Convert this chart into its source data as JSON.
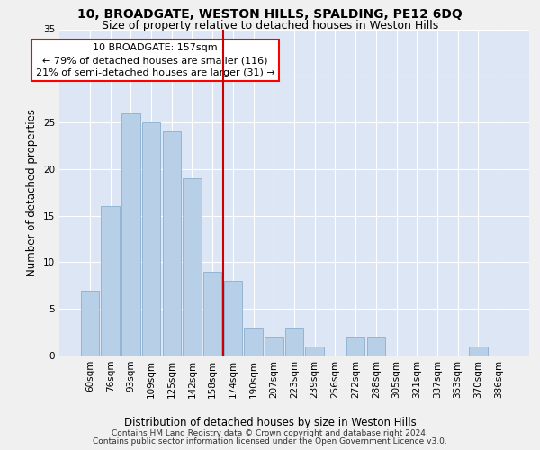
{
  "title1": "10, BROADGATE, WESTON HILLS, SPALDING, PE12 6DQ",
  "title2": "Size of property relative to detached houses in Weston Hills",
  "xlabel": "Distribution of detached houses by size in Weston Hills",
  "ylabel": "Number of detached properties",
  "footnote1": "Contains HM Land Registry data © Crown copyright and database right 2024.",
  "footnote2": "Contains public sector information licensed under the Open Government Licence v3.0.",
  "annotation_line1": "10 BROADGATE: 157sqm",
  "annotation_line2": "← 79% of detached houses are smaller (116)",
  "annotation_line3": "21% of semi-detached houses are larger (31) →",
  "bar_labels": [
    "60sqm",
    "76sqm",
    "93sqm",
    "109sqm",
    "125sqm",
    "142sqm",
    "158sqm",
    "174sqm",
    "190sqm",
    "207sqm",
    "223sqm",
    "239sqm",
    "256sqm",
    "272sqm",
    "288sqm",
    "305sqm",
    "321sqm",
    "337sqm",
    "353sqm",
    "370sqm",
    "386sqm"
  ],
  "bar_values": [
    7,
    16,
    26,
    25,
    24,
    19,
    9,
    8,
    3,
    2,
    3,
    1,
    0,
    2,
    2,
    0,
    0,
    0,
    0,
    1,
    0
  ],
  "bar_color": "#b8cfe8",
  "bar_edge_color": "#8ab0d0",
  "vline_color": "#cc0000",
  "vline_x": 6.5,
  "ylim": [
    0,
    35
  ],
  "yticks": [
    0,
    5,
    10,
    15,
    20,
    25,
    30,
    35
  ],
  "background_color": "#dce6f5",
  "grid_color": "#ffffff",
  "fig_background": "#f0f0f0",
  "title_fontsize": 10,
  "subtitle_fontsize": 9,
  "axis_label_fontsize": 8.5,
  "tick_fontsize": 7.5,
  "annotation_fontsize": 8,
  "footnote_fontsize": 6.5
}
